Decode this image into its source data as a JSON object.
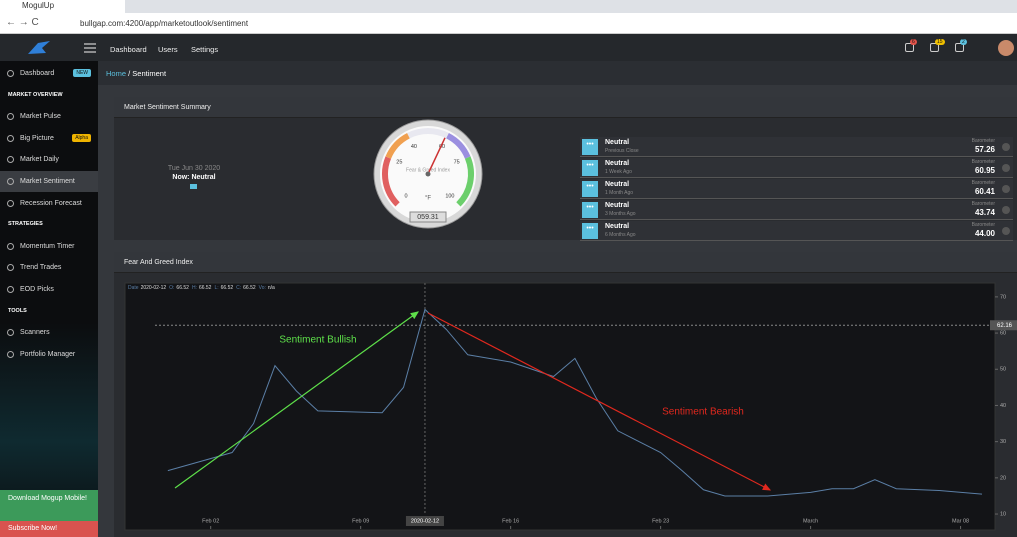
{
  "browser": {
    "tab_title": "MogulUp",
    "url": "bullgap.com:4200/app/marketoutlook/sentiment"
  },
  "topnav": {
    "links": [
      "Dashboard",
      "Users",
      "Settings"
    ],
    "badges": [
      "6",
      "15",
      "2"
    ]
  },
  "sidebar": {
    "items": [
      {
        "label": "Dashboard",
        "kind": "item",
        "badge": "NEW"
      },
      {
        "label": "MARKET OVERVIEW",
        "kind": "section"
      },
      {
        "label": "Market Pulse",
        "kind": "item"
      },
      {
        "label": "Big Picture",
        "kind": "item",
        "badge": "Alpha"
      },
      {
        "label": "Market Daily",
        "kind": "item"
      },
      {
        "label": "Market Sentiment",
        "kind": "active"
      },
      {
        "label": "Recession Forecast",
        "kind": "item"
      },
      {
        "label": "STRATEGIES",
        "kind": "section"
      },
      {
        "label": "Momentum Timer",
        "kind": "item"
      },
      {
        "label": "Trend Trades",
        "kind": "item"
      },
      {
        "label": "EOD Picks",
        "kind": "item"
      },
      {
        "label": "TOOLS",
        "kind": "section"
      },
      {
        "label": "Scanners",
        "kind": "item"
      },
      {
        "label": "Portfolio Manager",
        "kind": "item"
      }
    ],
    "footer": [
      "Download Mogup Mobile!",
      "Subscribe Now!"
    ]
  },
  "breadcrumb": [
    "Home",
    "Sentiment"
  ],
  "summary": {
    "title": "Market Sentiment Summary",
    "date": "Tue Jun 30 2020",
    "now": "Now: Neutral",
    "gauge": {
      "title": "Fear & Greed Index",
      "unit": "°F",
      "value": 59.31,
      "value_label": "059.31",
      "lim": [
        0,
        100
      ],
      "ticks": [
        0,
        25,
        40,
        60,
        75,
        100
      ]
    },
    "rows": [
      {
        "label": "Neutral",
        "period": "Previous Close",
        "metric": "Barometer",
        "value": "57.26"
      },
      {
        "label": "Neutral",
        "period": "1 Week Ago",
        "metric": "Barometer",
        "value": "60.95"
      },
      {
        "label": "Neutral",
        "period": "1 Month Ago",
        "metric": "Barometer",
        "value": "60.41"
      },
      {
        "label": "Neutral",
        "period": "3 Months Ago",
        "metric": "Barometer",
        "value": "43.74"
      },
      {
        "label": "Neutral",
        "period": "6 Months Ago",
        "metric": "Barometer",
        "value": "44.00"
      }
    ]
  },
  "chart_data": {
    "type": "line",
    "title": "Fear And Greed Index",
    "x": [
      "2020-01-31",
      "2020-02-03",
      "2020-02-04",
      "2020-02-05",
      "2020-02-06",
      "2020-02-07",
      "2020-02-10",
      "2020-02-11",
      "2020-02-12",
      "2020-02-13",
      "2020-02-14",
      "2020-02-16",
      "2020-02-18",
      "2020-02-19",
      "2020-02-20",
      "2020-02-21",
      "2020-02-23",
      "2020-02-24",
      "2020-02-25",
      "2020-02-26",
      "2020-02-28",
      "2020-03-01",
      "2020-03-02",
      "2020-03-03",
      "2020-03-04",
      "2020-03-05",
      "2020-03-07",
      "2020-03-09"
    ],
    "values": [
      22,
      27,
      35,
      51,
      44,
      38.5,
      38,
      45,
      66.52,
      61,
      54,
      52,
      48,
      53,
      42,
      33,
      27,
      22,
      16.7,
      15,
      15,
      16,
      17,
      17,
      19.5,
      17,
      16.5,
      15.5
    ],
    "color": "#5b7fa6",
    "xlim": [
      "2020-01-29",
      "2020-03-09"
    ],
    "xticks": [
      {
        "value": "2020-02-02",
        "label": "Feb 02"
      },
      {
        "value": "2020-02-09",
        "label": "Feb 09"
      },
      {
        "value": "2020-02-16",
        "label": "Feb 16"
      },
      {
        "value": "2020-02-23",
        "label": "Feb 23"
      },
      {
        "value": "2020-03-01",
        "label": "March"
      },
      {
        "value": "2020-03-08",
        "label": "Mar 08"
      }
    ],
    "ylim": [
      7.8,
      71.9
    ],
    "yticks": [
      10,
      20,
      30,
      40,
      50,
      60,
      70
    ],
    "grid": false,
    "reference_line": {
      "value": 62.16,
      "color": "#888888"
    },
    "crosshair": {
      "x": "2020-02-12",
      "label": "2020-02-12"
    },
    "info": [
      {
        "label": "Date",
        "value": "2020-02-12"
      },
      {
        "label": "O:",
        "value": 66.52
      },
      {
        "label": "H:",
        "value": 66.52
      },
      {
        "label": "L:",
        "value": 66.52
      },
      {
        "label": "C:",
        "value": 66.52
      },
      {
        "label": "Vo:",
        "value": "n/a"
      }
    ],
    "annotations": [
      {
        "text": "Sentiment Bullish",
        "color": "#5ee04a"
      },
      {
        "text": "Sentiment Bearish",
        "color": "#e0281e"
      }
    ]
  }
}
